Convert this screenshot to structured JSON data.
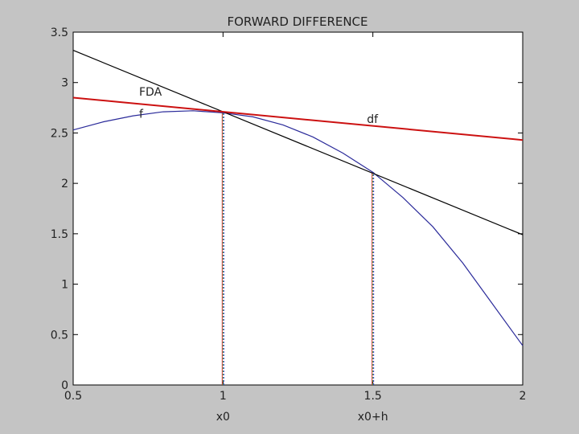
{
  "chart_data": {
    "type": "line",
    "title": "FORWARD DIFFERENCE",
    "xlim": [
      0.5,
      2
    ],
    "ylim": [
      0,
      3.5
    ],
    "x_ticks": [
      {
        "value": 0.5,
        "label": "0.5"
      },
      {
        "value": 1,
        "label": "1"
      },
      {
        "value": 1.5,
        "label": "1.5"
      },
      {
        "value": 2,
        "label": "2"
      }
    ],
    "x_sub_labels": [
      {
        "value": 1,
        "label": "x0"
      },
      {
        "value": 1.5,
        "label": "x0+h"
      }
    ],
    "y_ticks": [
      {
        "value": 0,
        "label": "0"
      },
      {
        "value": 0.5,
        "label": "0.5"
      },
      {
        "value": 1,
        "label": "1"
      },
      {
        "value": 1.5,
        "label": "1.5"
      },
      {
        "value": 2,
        "label": "2"
      },
      {
        "value": 2.5,
        "label": "2.5"
      },
      {
        "value": 3,
        "label": "3"
      },
      {
        "value": 3.5,
        "label": "3.5"
      }
    ],
    "grid": false,
    "series": [
      {
        "name": "f",
        "color": "#2b2b9a",
        "values_x": [
          0.5,
          0.6,
          0.7,
          0.8,
          0.9,
          1.0,
          1.1,
          1.2,
          1.3,
          1.4,
          1.5,
          1.6,
          1.7,
          1.8,
          1.9,
          2.0
        ],
        "values_y": [
          2.53,
          2.61,
          2.67,
          2.71,
          2.72,
          2.7,
          2.66,
          2.58,
          2.46,
          2.3,
          2.11,
          1.86,
          1.57,
          1.21,
          0.8,
          0.39
        ]
      },
      {
        "name": "FDA",
        "color": "#000000",
        "values_x": [
          0.5,
          2.0
        ],
        "values_y": [
          3.32,
          1.49
        ]
      },
      {
        "name": "df",
        "color": "#cc1111",
        "values_x": [
          0.5,
          2.0
        ],
        "values_y": [
          2.85,
          2.43
        ]
      }
    ],
    "vertical_markers": [
      {
        "x": 1.0,
        "y_top": 2.7
      },
      {
        "x": 1.5,
        "y_top": 2.11
      }
    ],
    "annotations": [
      {
        "text": "FDA",
        "x": 0.72,
        "y": 2.87
      },
      {
        "text": "f",
        "x": 0.72,
        "y": 2.65
      },
      {
        "text": "df",
        "x": 1.48,
        "y": 2.6
      }
    ]
  }
}
